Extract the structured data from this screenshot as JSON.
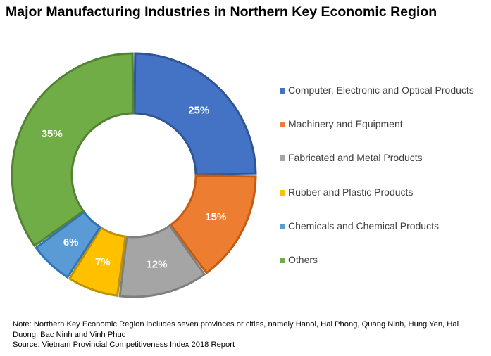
{
  "title": "Major Manufacturing Industries in Northern Key Economic Region",
  "chart_data": {
    "type": "pie",
    "subtype": "donut",
    "title": "Major Manufacturing Industries in Northern Key Economic Region",
    "legend_position": "right",
    "slices": [
      {
        "name": "Computer, Electronic and Optical Products",
        "value": 25,
        "label": "25%",
        "color": "#4472C4",
        "stroke": "#2F5597"
      },
      {
        "name": "Machinery and Equipment",
        "value": 15,
        "label": "15%",
        "color": "#ED7D31",
        "stroke": "#C55A11"
      },
      {
        "name": "Fabricated and Metal Products",
        "value": 12,
        "label": "12%",
        "color": "#A5A5A5",
        "stroke": "#7F7F7F"
      },
      {
        "name": "Rubber and Plastic Products",
        "value": 7,
        "label": "7%",
        "color": "#FFC000",
        "stroke": "#BF9000"
      },
      {
        "name": "Chemicals and Chemical Products",
        "value": 6,
        "label": "6%",
        "color": "#5B9BD5",
        "stroke": "#2E75B6"
      },
      {
        "name": "Others",
        "value": 35,
        "label": "35%",
        "color": "#70AD47",
        "stroke": "#548235"
      }
    ]
  },
  "note": {
    "text": "Note: Northern Key Economic Region includes seven provinces or cities, namely Hanoi, Hai Phong, Quang Ninh, Hung Yen, Hai Duong, Bac Ninh and Vinh Phuc",
    "source": "Source: Vietnam Provincial Competitiveness Index 2018 Report"
  }
}
